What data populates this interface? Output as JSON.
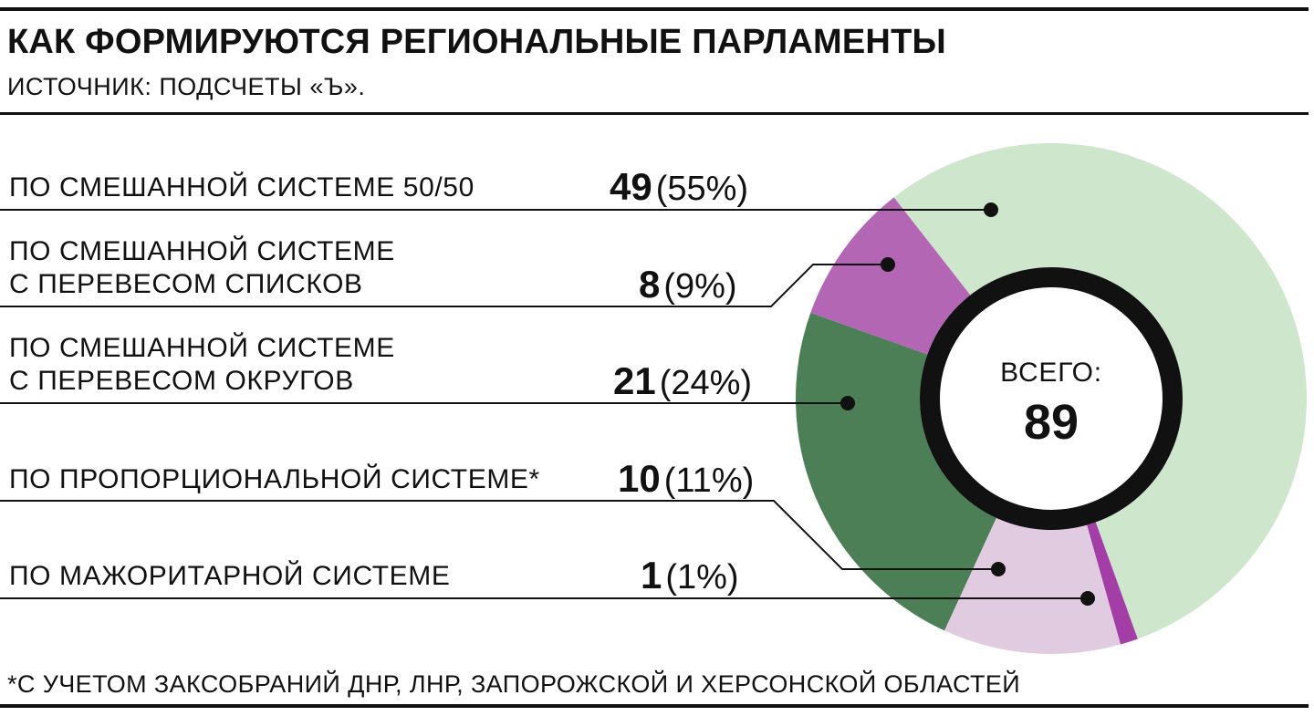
{
  "header": {
    "title": "КАК ФОРМИРУЮТСЯ РЕГИОНАЛЬНЫЕ ПАРЛАМЕНТЫ",
    "source": "ИСТОЧНИК: ПОДСЧЕТЫ «Ъ»."
  },
  "footnote": "*С УЧЕТОМ ЗАКСОБРАНИЙ ДНР, ЛНР, ЗАПОРОЖСКОЙ И ХЕРСОНСКОЙ ОБЛАСТЕЙ",
  "chart_data": {
    "type": "pie",
    "variant": "donut",
    "center_caption": "ВСЕГО:",
    "center_value": "89",
    "total": 89,
    "slices": [
      {
        "label": "ПО СМЕШАННОЙ СИСТЕМЕ 50/50",
        "value": 49,
        "value_text": "49",
        "percent": 55,
        "percent_text": "(55%)",
        "color": "#cde6cc"
      },
      {
        "label": "ПО МАЖОРИТАРНОЙ СИСТЕМЕ",
        "value": 1,
        "value_text": "1",
        "percent": 1,
        "percent_text": "(1%)",
        "color": "#a23ea6"
      },
      {
        "label": "ПО ПРОПОРЦИОНАЛЬНОЙ СИСТЕМЕ*",
        "value": 10,
        "value_text": "10",
        "percent": 11,
        "percent_text": "(11%)",
        "color": "#e0cbe0"
      },
      {
        "label": "ПО СМЕШАННОЙ СИСТЕМЕ\nС ПЕРЕВЕСОМ ОКРУГОВ",
        "value": 21,
        "value_text": "21",
        "percent": 24,
        "percent_text": "(24%)",
        "color": "#4c7f56"
      },
      {
        "label": "ПО СМЕШАННОЙ СИСТЕМЕ\nС ПЕРЕВЕСОМ СПИСКОВ",
        "value": 8,
        "value_text": "8",
        "percent": 9,
        "percent_text": "(9%)",
        "color": "#b266b4"
      }
    ],
    "ring_color": "#111111"
  }
}
